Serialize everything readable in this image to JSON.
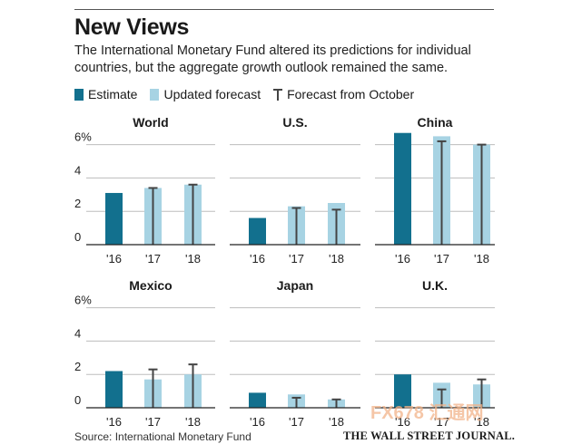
{
  "title": "New Views",
  "subtitle": "The International Monetary Fund altered its predictions for individual countries, but the aggregate growth outlook remained the same.",
  "legend": {
    "estimate": "Estimate",
    "updated": "Updated forecast",
    "october": "Forecast from October"
  },
  "colors": {
    "estimate": "#12708e",
    "updated": "#a7d3e3",
    "whisker": "#444444",
    "grid": "#bdbdbd",
    "axis": "#222222"
  },
  "source": "Source: International Monetary Fund",
  "publisher": "THE WALL STREET JOURNAL.",
  "watermark": "FX678 汇通网",
  "chart_data": [
    {
      "type": "bar",
      "title": "World",
      "categories": [
        "'16",
        "'17",
        "'18"
      ],
      "estimate": [
        3.1,
        null,
        null
      ],
      "updated": [
        null,
        3.4,
        3.6
      ],
      "october": [
        null,
        3.4,
        3.6
      ],
      "ylim": [
        0,
        6
      ],
      "yticks": [
        "0",
        "2",
        "4",
        "6%"
      ]
    },
    {
      "type": "bar",
      "title": "U.S.",
      "categories": [
        "'16",
        "'17",
        "'18"
      ],
      "estimate": [
        1.6,
        null,
        null
      ],
      "updated": [
        null,
        2.3,
        2.5
      ],
      "october": [
        null,
        2.2,
        2.1
      ],
      "ylim": [
        0,
        6
      ],
      "yticks": [
        "0",
        "2",
        "4",
        "6%"
      ]
    },
    {
      "type": "bar",
      "title": "China",
      "categories": [
        "'16",
        "'17",
        "'18"
      ],
      "estimate": [
        6.7,
        null,
        null
      ],
      "updated": [
        null,
        6.5,
        6.0
      ],
      "october": [
        null,
        6.2,
        6.0
      ],
      "ylim": [
        0,
        6
      ],
      "yticks": [
        "0",
        "2",
        "4",
        "6%"
      ]
    },
    {
      "type": "bar",
      "title": "Mexico",
      "categories": [
        "'16",
        "'17",
        "'18"
      ],
      "estimate": [
        2.2,
        null,
        null
      ],
      "updated": [
        null,
        1.7,
        2.0
      ],
      "october": [
        null,
        2.3,
        2.6
      ],
      "ylim": [
        0,
        6
      ],
      "yticks": [
        "0",
        "2",
        "4",
        "6%"
      ]
    },
    {
      "type": "bar",
      "title": "Japan",
      "categories": [
        "'16",
        "'17",
        "'18"
      ],
      "estimate": [
        0.9,
        null,
        null
      ],
      "updated": [
        null,
        0.8,
        0.5
      ],
      "october": [
        null,
        0.6,
        0.5
      ],
      "ylim": [
        0,
        6
      ],
      "yticks": [
        "0",
        "2",
        "4",
        "6%"
      ]
    },
    {
      "type": "bar",
      "title": "U.K.",
      "categories": [
        "'16",
        "'17",
        "'18"
      ],
      "estimate": [
        2.0,
        null,
        null
      ],
      "updated": [
        null,
        1.5,
        1.4
      ],
      "october": [
        null,
        1.1,
        1.7
      ],
      "ylim": [
        0,
        6
      ],
      "yticks": [
        "0",
        "2",
        "4",
        "6%"
      ]
    }
  ]
}
